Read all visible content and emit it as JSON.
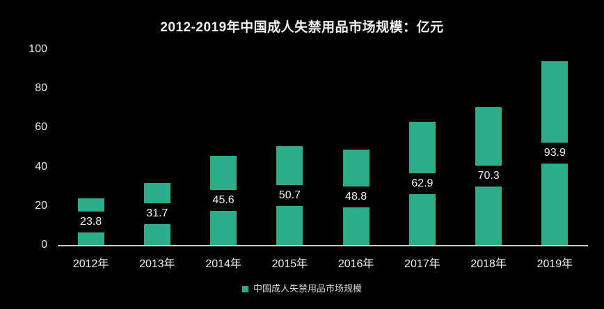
{
  "colors": {
    "background": "#000000",
    "bar": "#2bad8c",
    "axis_line": "#c9c9c9",
    "title_text": "#f2f2f2",
    "tick_text": "#e8e8e8",
    "value_text": "#f0f0f0",
    "legend_text": "#d6d6d6"
  },
  "chart_data": {
    "type": "bar",
    "title": "2012-2019年中国成人失禁用品市场规模：亿元",
    "categories": [
      "2012年",
      "2013年",
      "2014年",
      "2015年",
      "2016年",
      "2017年",
      "2018年",
      "2019年"
    ],
    "values": [
      23.8,
      31.7,
      45.6,
      50.7,
      48.8,
      62.9,
      70.3,
      93.9
    ],
    "series_name": "中国成人失禁用品市场规模",
    "xlabel": "",
    "ylabel": "",
    "ylim": [
      0,
      100
    ],
    "yticks": [
      0,
      20,
      40,
      60,
      80,
      100
    ],
    "value_label_position": "inside-center",
    "grid": false,
    "legend_position": "bottom"
  }
}
